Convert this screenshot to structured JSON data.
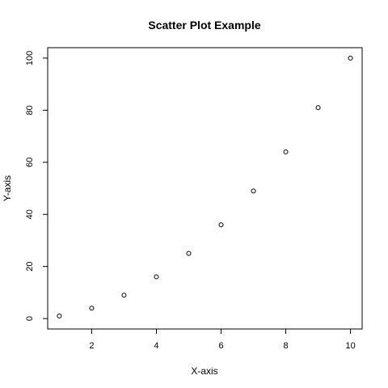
{
  "chart_data": {
    "type": "scatter",
    "title": "Scatter Plot Example",
    "xlabel": "X-axis",
    "ylabel": "Y-axis",
    "x": [
      1,
      2,
      3,
      4,
      5,
      6,
      7,
      8,
      9,
      10
    ],
    "y": [
      1,
      4,
      9,
      16,
      25,
      36,
      49,
      64,
      81,
      100
    ],
    "xlim": [
      0.64,
      10.36
    ],
    "ylim": [
      -4,
      104
    ],
    "xticks": [
      2,
      4,
      6,
      8,
      10
    ],
    "yticks": [
      0,
      20,
      40,
      60,
      80,
      100
    ],
    "grid": false,
    "legend": "none",
    "marker": "open-circle",
    "colors": {
      "point": "#000000",
      "axis": "#000000",
      "background": "#ffffff"
    }
  }
}
